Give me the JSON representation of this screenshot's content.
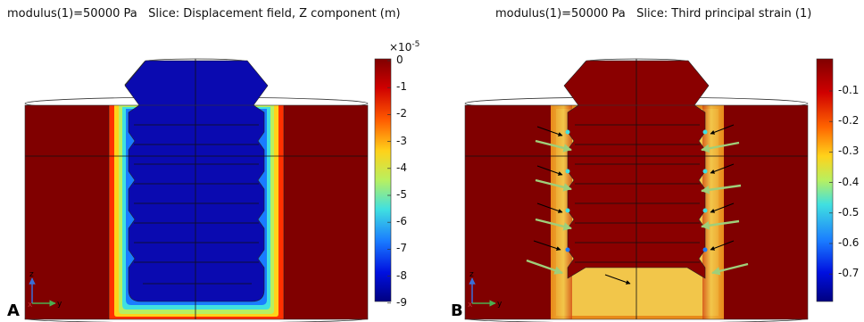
{
  "panels": [
    {
      "letter": "A",
      "title": "modulus(1)=50000 Pa   Slice: Displacement field, Z component (m)",
      "colorbar": {
        "exponent_prefix": "×10",
        "exponent": "-5",
        "ticks": [
          "0",
          "-1",
          "-2",
          "-3",
          "-4",
          "-5",
          "-6",
          "-7",
          "-8",
          "-9"
        ]
      },
      "axes": {
        "vertical": "z",
        "horizontal": "y",
        "origin": "x"
      }
    },
    {
      "letter": "B",
      "title": "modulus(1)=50000 Pa   Slice: Third principal strain (1)",
      "colorbar": {
        "ticks": [
          "-0.1",
          "-0.2",
          "-0.3",
          "-0.4",
          "-0.5",
          "-0.6",
          "-0.7"
        ]
      },
      "axes": {
        "vertical": "z",
        "horizontal": "y",
        "origin": "x"
      }
    }
  ],
  "colors": {
    "dark_red": "#800000",
    "deep_blue": "#0a0a9a",
    "yellow": "#f2c64a",
    "green_arrow": "#9fcf7a",
    "black_arrow": "#000000"
  }
}
